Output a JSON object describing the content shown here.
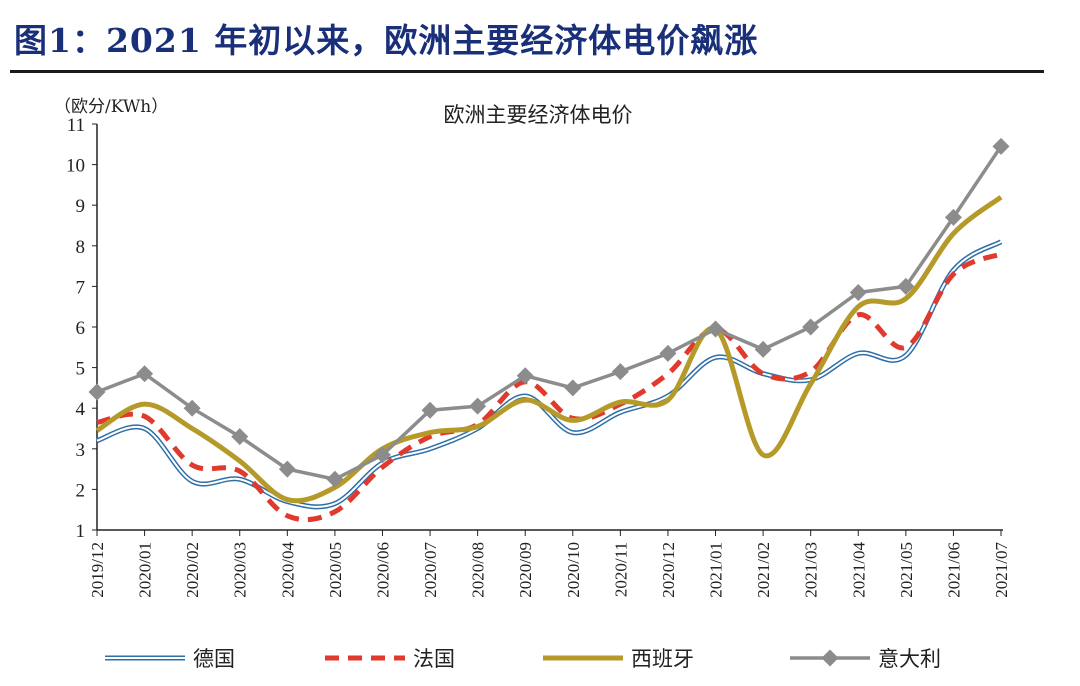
{
  "figure_title": "图1：2021 年初以来，欧洲主要经济体电价飙涨",
  "chart_data": {
    "type": "line",
    "title": "欧洲主要经济体电价",
    "ylabel": "（欧分/KWh）",
    "xlabel": "",
    "ylim": [
      1,
      11
    ],
    "yticks": [
      1,
      2,
      3,
      4,
      5,
      6,
      7,
      8,
      9,
      10,
      11
    ],
    "grid": false,
    "legend_position": "bottom",
    "categories": [
      "2019/12",
      "2020/01",
      "2020/02",
      "2020/03",
      "2020/04",
      "2020/05",
      "2020/06",
      "2020/07",
      "2020/08",
      "2020/09",
      "2020/10",
      "2020/11",
      "2020/12",
      "2021/01",
      "2021/02",
      "2021/03",
      "2021/04",
      "2021/05",
      "2021/06",
      "2021/07"
    ],
    "series": [
      {
        "name": "德国",
        "color": "#2e6fa8",
        "style": "double-smooth",
        "values": [
          3.2,
          3.5,
          2.2,
          2.25,
          1.7,
          1.65,
          2.65,
          3.0,
          3.5,
          4.3,
          3.4,
          3.9,
          4.3,
          5.25,
          4.85,
          4.7,
          5.35,
          5.3,
          7.4,
          8.1
        ]
      },
      {
        "name": "法国",
        "color": "#e03a2e",
        "style": "dashed-smooth",
        "values": [
          3.65,
          3.8,
          2.6,
          2.45,
          1.35,
          1.45,
          2.55,
          3.3,
          3.6,
          4.65,
          3.75,
          4.1,
          4.85,
          5.95,
          4.85,
          4.9,
          6.3,
          5.5,
          7.3,
          7.8
        ]
      },
      {
        "name": "西班牙",
        "color": "#b59a2a",
        "style": "solid-smooth",
        "values": [
          3.45,
          4.1,
          3.5,
          2.7,
          1.75,
          2.05,
          3.0,
          3.4,
          3.55,
          4.2,
          3.7,
          4.15,
          4.2,
          5.95,
          2.85,
          4.6,
          6.5,
          6.7,
          8.3,
          9.2
        ]
      },
      {
        "name": "意大利",
        "color": "#8c8c8c",
        "style": "solid-marker",
        "values": [
          4.4,
          4.85,
          4.0,
          3.3,
          2.5,
          2.25,
          2.85,
          3.95,
          4.05,
          4.8,
          4.5,
          4.9,
          5.35,
          5.95,
          5.45,
          6.0,
          6.85,
          7.0,
          8.7,
          10.45
        ]
      }
    ]
  }
}
